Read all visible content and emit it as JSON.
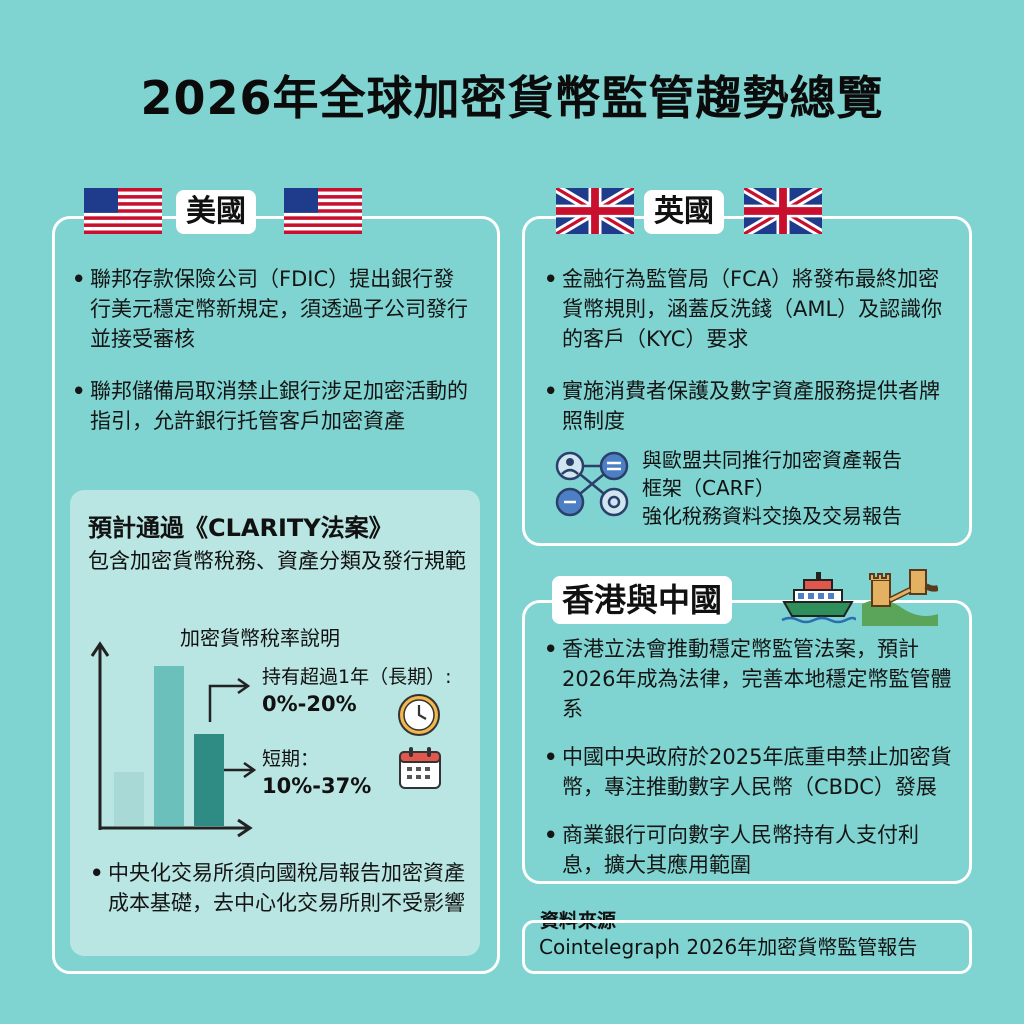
{
  "title": "2026年全球加密貨幣監管趨勢總覽",
  "usa": {
    "heading": "美國",
    "bullets": [
      "聯邦存款保險公司（FDIC）提出銀行發行美元穩定幣新規定，須透過子公司發行並接受審核",
      "聯邦儲備局取消禁止銀行涉足加密活動的指引，允許銀行托管客戶加密資產"
    ],
    "clarity": {
      "title": "預計通過《CLARITY法案》",
      "subtitle": "包含加密貨幣稅務、資產分類及發行規範",
      "tax_chart": {
        "title": "加密貨幣稅率說明",
        "long_label": "持有超過1年（長期）:",
        "long_value": "0%-20%",
        "short_label": "短期：",
        "short_value": "10%-37%",
        "bar_colors": [
          "#a9d9d6",
          "#6cc0bb",
          "#2e8c85"
        ]
      },
      "bullet": "中央化交易所須向國稅局報告加密資產成本基礎，去中心化交易所則不受影響"
    }
  },
  "uk": {
    "heading": "英國",
    "bullets": [
      "金融行為監管局（FCA）將發布最終加密貨幣規則，涵蓋反洗錢（AML）及認識你的客戶（KYC）要求",
      "實施消費者保護及數字資產服務提供者牌照制度"
    ],
    "carf_lines": [
      "與歐盟共同推行加密資產報告",
      "框架（CARF）",
      "強化稅務資料交換及交易報告"
    ]
  },
  "hk_cn": {
    "heading": "香港與中國",
    "bullets": [
      "香港立法會推動穩定幣監管法案，預計2026年成為法律，完善本地穩定幣監管體系",
      "中國中央政府於2025年底重申禁止加密貨幣，專注推動數字人民幣（CBDC）發展",
      "商業銀行可向數字人民幣持有人支付利息，擴大其應用範圍"
    ]
  },
  "source": {
    "label": "資料來源",
    "text": "Cointelegraph 2026年加密貨幣監管報告"
  },
  "colors": {
    "background": "#7fd3d0",
    "panel_border": "#ffffff",
    "inner_box": "#b9e5e2"
  }
}
